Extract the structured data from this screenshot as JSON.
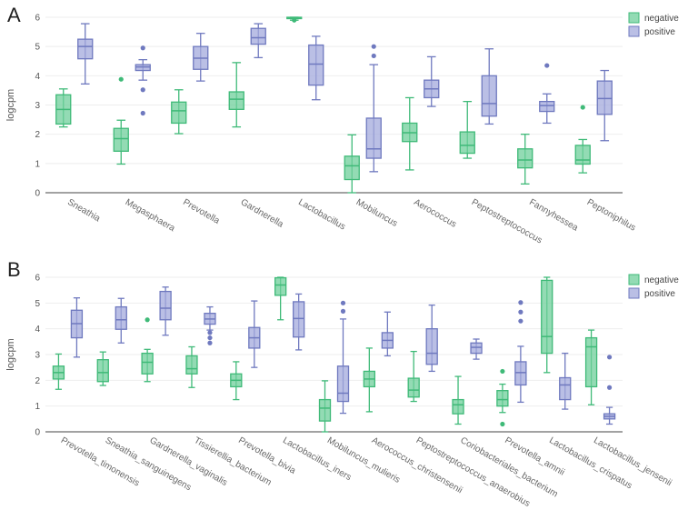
{
  "colors": {
    "negative": "#6fcf9b",
    "positive": "#a3a9dc",
    "negative_stroke": "#3fba78",
    "positive_stroke": "#6f79bf"
  },
  "chart_data": [
    {
      "panel": "A",
      "type": "box",
      "ylabel": "logcpm",
      "ylim": [
        0,
        6
      ],
      "yticks": [
        0,
        1,
        2,
        3,
        4,
        5,
        6
      ],
      "legend": [
        "negative",
        "positive"
      ],
      "legend_position": "top-right",
      "categories": [
        "Sneathia",
        "Megasphaera",
        "Prevotella",
        "Gardnerella",
        "Lactobacillus",
        "Mobiluncus",
        "Aerococcus",
        "Peptostreptococcus",
        "Fannyhessea",
        "Peptoniphilus"
      ],
      "series": [
        {
          "name": "negative",
          "boxes": [
            {
              "min": 2.25,
              "q1": 2.35,
              "median": 2.85,
              "q3": 3.35,
              "max": 3.55,
              "outliers": []
            },
            {
              "min": 0.98,
              "q1": 1.42,
              "median": 1.85,
              "q3": 2.2,
              "max": 2.48,
              "outliers": [
                3.88
              ]
            },
            {
              "min": 2.02,
              "q1": 2.38,
              "median": 2.8,
              "q3": 3.1,
              "max": 3.52,
              "outliers": []
            },
            {
              "min": 2.25,
              "q1": 2.85,
              "median": 3.2,
              "q3": 3.45,
              "max": 4.45,
              "outliers": []
            },
            {
              "min": 5.9,
              "q1": 5.96,
              "median": 5.98,
              "q3": 6.0,
              "max": 6.0,
              "outliers": [
                5.9
              ]
            },
            {
              "min": 0.0,
              "q1": 0.45,
              "median": 0.92,
              "q3": 1.25,
              "max": 1.98,
              "outliers": []
            },
            {
              "min": 0.78,
              "q1": 1.75,
              "median": 2.05,
              "q3": 2.38,
              "max": 3.25,
              "outliers": []
            },
            {
              "min": 1.18,
              "q1": 1.35,
              "median": 1.62,
              "q3": 2.08,
              "max": 3.12,
              "outliers": []
            },
            {
              "min": 0.3,
              "q1": 0.85,
              "median": 1.12,
              "q3": 1.5,
              "max": 2.0,
              "outliers": []
            },
            {
              "min": 0.68,
              "q1": 0.98,
              "median": 1.12,
              "q3": 1.62,
              "max": 1.82,
              "outliers": [
                2.92
              ]
            }
          ]
        },
        {
          "name": "positive",
          "boxes": [
            {
              "min": 3.72,
              "q1": 4.58,
              "median": 5.0,
              "q3": 5.25,
              "max": 5.78,
              "outliers": []
            },
            {
              "min": 3.85,
              "q1": 4.18,
              "median": 4.3,
              "q3": 4.38,
              "max": 4.55,
              "outliers": [
                4.95,
                3.52,
                2.72
              ]
            },
            {
              "min": 3.82,
              "q1": 4.22,
              "median": 4.6,
              "q3": 5.0,
              "max": 5.45,
              "outliers": []
            },
            {
              "min": 4.62,
              "q1": 5.08,
              "median": 5.3,
              "q3": 5.62,
              "max": 5.78,
              "outliers": []
            },
            {
              "min": 3.18,
              "q1": 3.68,
              "median": 4.4,
              "q3": 5.05,
              "max": 5.35,
              "outliers": []
            },
            {
              "min": 0.72,
              "q1": 1.18,
              "median": 1.5,
              "q3": 2.55,
              "max": 4.38,
              "outliers": [
                5.0,
                4.68
              ]
            },
            {
              "min": 2.95,
              "q1": 3.25,
              "median": 3.55,
              "q3": 3.85,
              "max": 4.65,
              "outliers": []
            },
            {
              "min": 2.35,
              "q1": 2.62,
              "median": 3.05,
              "q3": 4.0,
              "max": 4.92,
              "outliers": []
            },
            {
              "min": 2.38,
              "q1": 2.78,
              "median": 2.98,
              "q3": 3.12,
              "max": 3.38,
              "outliers": [
                4.35
              ]
            },
            {
              "min": 1.78,
              "q1": 2.68,
              "median": 3.22,
              "q3": 3.82,
              "max": 4.18,
              "outliers": []
            }
          ]
        }
      ]
    },
    {
      "panel": "B",
      "type": "box",
      "ylabel": "logcpm",
      "ylim": [
        0,
        6
      ],
      "yticks": [
        0,
        1,
        2,
        3,
        4,
        5,
        6
      ],
      "legend": [
        "negative",
        "positive"
      ],
      "legend_position": "top-right",
      "categories": [
        "Prevotella_timonensis",
        "Sneathia_sanguinegens",
        "Gardnerella_vaginalis",
        "Tissierellia_bacterium",
        "Prevotella_bivia",
        "Lactobacillus_iners",
        "Mobiluncus_mulieris",
        "Aerococcus_christensenii",
        "Peptostreptococcus_anaerobius",
        "Coriobacteriales_bacterium",
        "Prevotella_amnii",
        "Lactobacillus_crispatus",
        "Lactobacillus_jensenii"
      ],
      "series": [
        {
          "name": "negative",
          "boxes": [
            {
              "min": 1.65,
              "q1": 2.05,
              "median": 2.3,
              "q3": 2.55,
              "max": 3.02,
              "outliers": []
            },
            {
              "min": 1.8,
              "q1": 1.95,
              "median": 2.3,
              "q3": 2.8,
              "max": 3.1,
              "outliers": []
            },
            {
              "min": 1.95,
              "q1": 2.25,
              "median": 2.7,
              "q3": 3.05,
              "max": 3.2,
              "outliers": [
                4.35
              ]
            },
            {
              "min": 1.72,
              "q1": 2.25,
              "median": 2.45,
              "q3": 2.95,
              "max": 3.3,
              "outliers": []
            },
            {
              "min": 1.25,
              "q1": 1.75,
              "median": 2.0,
              "q3": 2.25,
              "max": 2.72,
              "outliers": []
            },
            {
              "min": 4.35,
              "q1": 5.3,
              "median": 5.7,
              "q3": 5.98,
              "max": 6.0,
              "outliers": []
            },
            {
              "min": 0.0,
              "q1": 0.42,
              "median": 0.92,
              "q3": 1.25,
              "max": 1.98,
              "outliers": []
            },
            {
              "min": 0.78,
              "q1": 1.75,
              "median": 2.05,
              "q3": 2.35,
              "max": 3.25,
              "outliers": []
            },
            {
              "min": 1.18,
              "q1": 1.35,
              "median": 1.62,
              "q3": 2.08,
              "max": 3.12,
              "outliers": []
            },
            {
              "min": 0.3,
              "q1": 0.7,
              "median": 1.05,
              "q3": 1.25,
              "max": 2.15,
              "outliers": []
            },
            {
              "min": 0.75,
              "q1": 1.0,
              "median": 1.25,
              "q3": 1.6,
              "max": 1.85,
              "outliers": [
                2.35,
                0.3
              ]
            },
            {
              "min": 2.3,
              "q1": 3.05,
              "median": 3.7,
              "q3": 5.88,
              "max": 6.0,
              "outliers": []
            },
            {
              "min": 1.05,
              "q1": 1.75,
              "median": 3.3,
              "q3": 3.65,
              "max": 3.95,
              "outliers": []
            }
          ]
        },
        {
          "name": "positive",
          "boxes": [
            {
              "min": 2.9,
              "q1": 3.65,
              "median": 4.2,
              "q3": 4.72,
              "max": 5.2,
              "outliers": []
            },
            {
              "min": 3.45,
              "q1": 3.98,
              "median": 4.35,
              "q3": 4.85,
              "max": 5.18,
              "outliers": []
            },
            {
              "min": 3.75,
              "q1": 4.35,
              "median": 4.8,
              "q3": 5.45,
              "max": 5.62,
              "outliers": []
            },
            {
              "min": 3.95,
              "q1": 4.18,
              "median": 4.38,
              "q3": 4.6,
              "max": 4.85,
              "outliers": [
                3.85,
                3.65,
                3.45
              ]
            },
            {
              "min": 2.5,
              "q1": 3.25,
              "median": 3.65,
              "q3": 4.05,
              "max": 5.08,
              "outliers": []
            },
            {
              "min": 3.18,
              "q1": 3.68,
              "median": 4.4,
              "q3": 5.05,
              "max": 5.35,
              "outliers": []
            },
            {
              "min": 0.72,
              "q1": 1.18,
              "median": 1.5,
              "q3": 2.55,
              "max": 4.38,
              "outliers": [
                5.0,
                4.68
              ]
            },
            {
              "min": 2.95,
              "q1": 3.25,
              "median": 3.55,
              "q3": 3.85,
              "max": 4.65,
              "outliers": []
            },
            {
              "min": 2.35,
              "q1": 2.62,
              "median": 3.05,
              "q3": 4.0,
              "max": 4.92,
              "outliers": []
            },
            {
              "min": 2.82,
              "q1": 3.05,
              "median": 3.28,
              "q3": 3.45,
              "max": 3.6,
              "outliers": []
            },
            {
              "min": 1.15,
              "q1": 1.82,
              "median": 2.3,
              "q3": 2.72,
              "max": 3.32,
              "outliers": [
                5.02,
                4.65,
                4.3
              ]
            },
            {
              "min": 0.88,
              "q1": 1.25,
              "median": 1.82,
              "q3": 2.1,
              "max": 3.05,
              "outliers": []
            },
            {
              "min": 0.3,
              "q1": 0.5,
              "median": 0.6,
              "q3": 0.7,
              "max": 0.95,
              "outliers": [
                2.9,
                1.72
              ]
            }
          ]
        }
      ]
    }
  ]
}
